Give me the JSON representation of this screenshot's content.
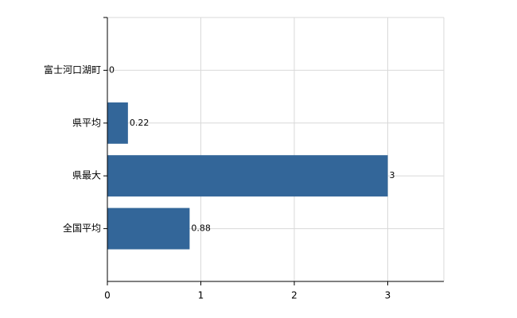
{
  "chart_data": {
    "type": "hbar",
    "categories": [
      "富士河口湖町",
      "県平均",
      "県最大",
      "全国平均"
    ],
    "values": [
      0,
      0.22,
      3,
      0.88
    ],
    "color": "#336699",
    "xlim": [
      0,
      3.6
    ],
    "xticks": [
      0,
      1,
      2,
      3
    ],
    "grid": true
  }
}
